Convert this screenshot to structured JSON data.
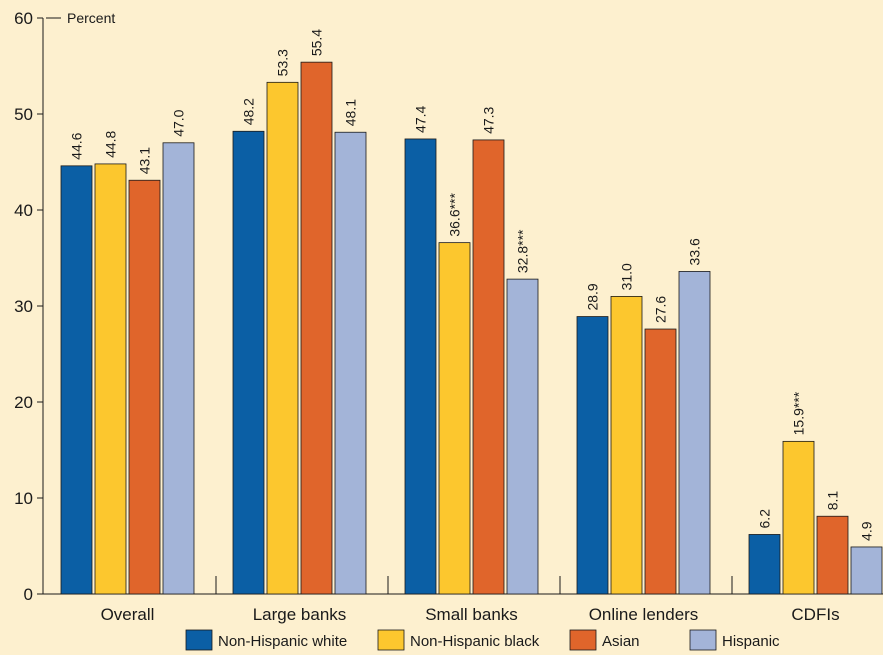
{
  "chart_data": {
    "type": "bar",
    "ylabel": "Percent",
    "ylim": [
      0,
      60
    ],
    "yticks": [
      0,
      10,
      20,
      30,
      40,
      50,
      60
    ],
    "grid": false,
    "legend_position": "bottom",
    "categories": [
      "Overall",
      "Large banks",
      "Small banks",
      "Online lenders",
      "CDFIs"
    ],
    "series": [
      {
        "name": "Non-Hispanic white",
        "color": "#0b5fa5",
        "values": [
          44.6,
          48.2,
          47.4,
          28.9,
          6.2
        ],
        "labels": [
          "44.6",
          "48.2",
          "47.4",
          "28.9",
          "6.2"
        ]
      },
      {
        "name": "Non-Hispanic black",
        "color": "#fcc72e",
        "values": [
          44.8,
          53.3,
          36.6,
          31.0,
          15.9
        ],
        "labels": [
          "44.8",
          "53.3",
          "36.6***",
          "31.0",
          "15.9***"
        ]
      },
      {
        "name": "Asian",
        "color": "#e0652b",
        "values": [
          43.1,
          55.4,
          47.3,
          27.6,
          8.1
        ],
        "labels": [
          "43.1",
          "55.4",
          "47.3",
          "27.6",
          "8.1"
        ]
      },
      {
        "name": "Hispanic",
        "color": "#a3b4d8",
        "values": [
          47.0,
          48.1,
          32.8,
          33.6,
          4.9
        ],
        "labels": [
          "47.0",
          "48.1",
          "32.8***",
          "33.6",
          "4.9"
        ]
      }
    ]
  }
}
